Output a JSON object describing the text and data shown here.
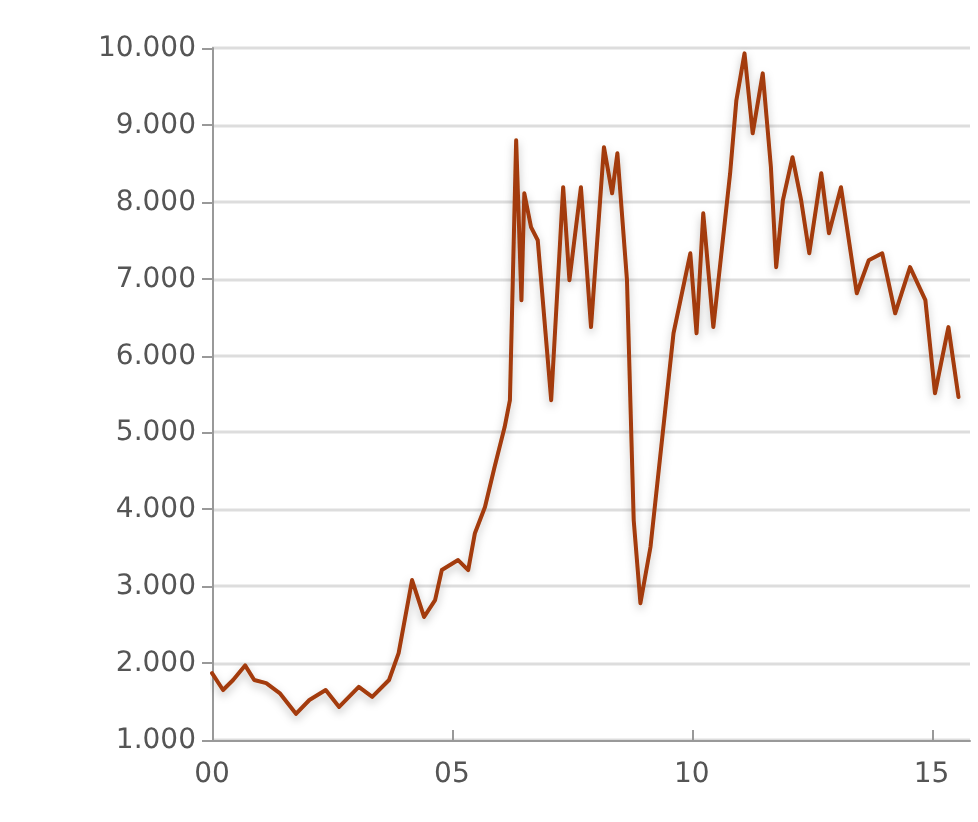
{
  "chart_data": {
    "type": "line",
    "x": [
      0,
      0.23,
      0.44,
      0.69,
      0.88,
      1.13,
      1.41,
      1.75,
      2.03,
      2.37,
      2.65,
      3.06,
      3.34,
      3.69,
      3.89,
      4.17,
      4.42,
      4.65,
      4.79,
      5.13,
      5.34,
      5.48,
      5.69,
      5.89,
      6.1,
      6.21,
      6.34,
      6.45,
      6.51,
      6.65,
      6.79,
      7.07,
      7.32,
      7.45,
      7.69,
      7.9,
      8.17,
      8.34,
      8.45,
      8.65,
      8.79,
      8.93,
      9.14,
      9.35,
      9.62,
      9.97,
      10.1,
      10.24,
      10.45,
      10.8,
      10.93,
      11.1,
      11.27,
      11.48,
      11.65,
      11.76,
      11.9,
      12.1,
      12.28,
      12.45,
      12.7,
      12.86,
      13.11,
      13.44,
      13.69,
      13.97,
      14.24,
      14.55,
      14.87,
      15.07,
      15.35,
      15.56
    ],
    "series": [
      {
        "color": "#a33a0a",
        "values": [
          1870,
          1650,
          1780,
          1970,
          1780,
          1740,
          1610,
          1340,
          1520,
          1650,
          1430,
          1690,
          1560,
          1780,
          2130,
          3080,
          2600,
          2820,
          3210,
          3340,
          3210,
          3690,
          4030,
          4550,
          5070,
          5420,
          8800,
          6720,
          8110,
          7670,
          7500,
          5420,
          8190,
          6980,
          8190,
          6370,
          8710,
          8110,
          8630,
          6980,
          3860,
          2780,
          3510,
          4730,
          6290,
          7330,
          6290,
          7850,
          6370,
          8370,
          9320,
          9930,
          8890,
          9670,
          8450,
          7150,
          8020,
          8580,
          8020,
          7330,
          8370,
          7590,
          8190,
          6810,
          7240,
          7330,
          6550,
          7150,
          6720,
          5510,
          6370,
          5460
        ]
      }
    ],
    "xlim": [
      0,
      15.8
    ],
    "xticks": [
      {
        "value": 0,
        "label": "00"
      },
      {
        "value": 5,
        "label": "05"
      },
      {
        "value": 10,
        "label": "10"
      },
      {
        "value": 15,
        "label": "15"
      }
    ],
    "ylim": [
      1000,
      10000
    ],
    "yticks": [
      {
        "value": 1000,
        "label": "1.000"
      },
      {
        "value": 2000,
        "label": "2.000"
      },
      {
        "value": 3000,
        "label": "3.000"
      },
      {
        "value": 4000,
        "label": "4.000"
      },
      {
        "value": 5000,
        "label": "5.000"
      },
      {
        "value": 6000,
        "label": "6.000"
      },
      {
        "value": 7000,
        "label": "7.000"
      },
      {
        "value": 8000,
        "label": "8.000"
      },
      {
        "value": 9000,
        "label": "9.000"
      },
      {
        "value": 10000,
        "label": "10.000"
      }
    ],
    "grid": "y",
    "marker": "none",
    "line_style": "solid"
  }
}
